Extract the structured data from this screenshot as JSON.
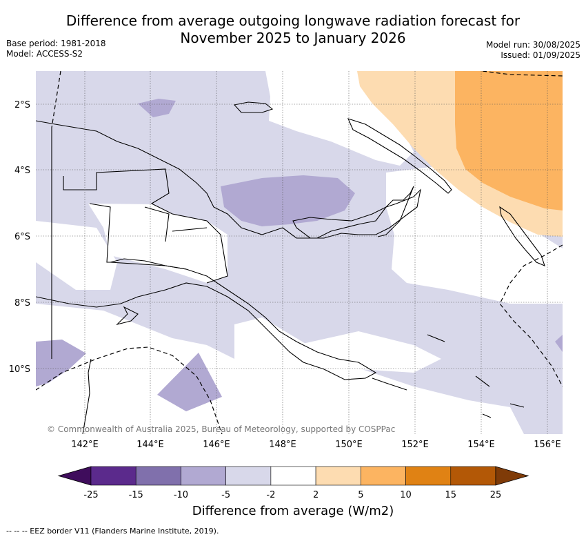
{
  "title_line1": "Difference from average outgoing longwave radiation forecast for",
  "title_line2": "November 2025 to January 2026",
  "base_period": "Base period: 1981-2018",
  "model": "Model: ACCESS-S2",
  "model_run": "Model run: 30/08/2025",
  "issued": "Issued: 01/09/2025",
  "copyright": "© Commonwealth of Australia 2025, Bureau of Meteorology, supported by COSPPac",
  "x_ticks": [
    "142°E",
    "144°E",
    "146°E",
    "148°E",
    "150°E",
    "152°E",
    "154°E",
    "156°E"
  ],
  "y_ticks": [
    "2°S",
    "4°S",
    "6°S",
    "8°S",
    "10°S"
  ],
  "colorbar": {
    "label": "Difference from average (W/m2)",
    "tick_labels": [
      "-25",
      "-15",
      "-10",
      "-5",
      "-2",
      "2",
      "5",
      "10",
      "15",
      "25"
    ],
    "colors": [
      "#3f0d5c",
      "#5b2a8c",
      "#8070ac",
      "#b1a9d2",
      "#d8d8ea",
      "#ffffff",
      "#fddcb1",
      "#fcb461",
      "#e08214",
      "#b35806",
      "#7f3b08"
    ]
  },
  "footnote": "--  --  -- EEZ border V11 (Flanders Marine Institute, 2019)."
}
